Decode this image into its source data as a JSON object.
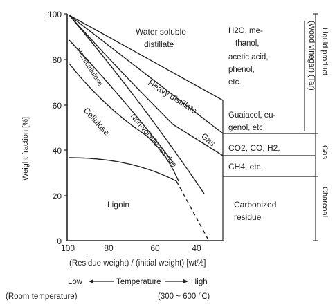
{
  "y_axis": {
    "label": "Weight fraction [%]",
    "ticks": [
      "100",
      "80",
      "60",
      "40",
      "20",
      "0"
    ]
  },
  "x_axis": {
    "ticks": [
      "100",
      "80",
      "60",
      "40"
    ],
    "label": "(Residue weight) / (initial weight) [wt%]"
  },
  "regions": {
    "water_soluble": [
      "Water soluble",
      "distillate"
    ],
    "hemicellulose": "Hemicellulose",
    "cellulose": "Cellulose",
    "heavy_distillate": "Heavy distillate",
    "non_volatile": "Non-volatile residue",
    "gas": "Gas",
    "lignin": "Lignin",
    "carbonized": [
      "Carbonized",
      "residue"
    ]
  },
  "products": {
    "liquid_lines": [
      "H2O, me-",
      "thanol,",
      "acetic acid,",
      "phenol,",
      "etc."
    ],
    "tar_lines": [
      "Guaiacol, eu-",
      "genol, etc."
    ],
    "gas_lines": [
      "CO2,  CO,  H2,",
      "CH4,  etc."
    ]
  },
  "brackets": {
    "liquid_product": "Liquid product",
    "wood_vinegar_tar": "(Wood vinegar) (Tar)",
    "gas": "Gas",
    "charcoal": "Charcoal"
  },
  "temperature": {
    "low": "Low",
    "middle": "Temperature",
    "high": "High",
    "room": "(Room temperature)",
    "range": "(300 ~ 600 ℃)"
  }
}
